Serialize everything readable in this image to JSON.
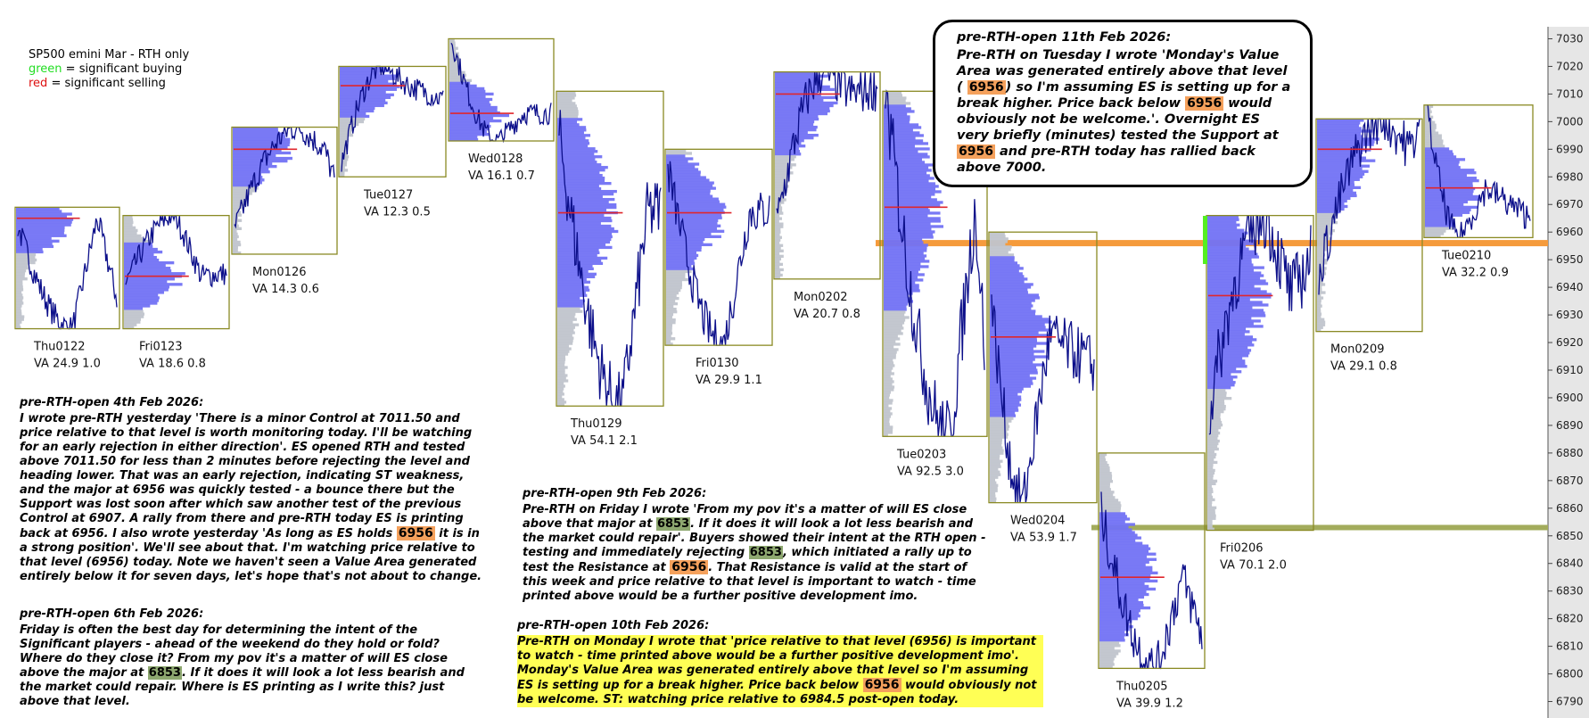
{
  "legend": {
    "line1": "SP500 emini  Mar - RTH only",
    "green_word": "green",
    "green_rest": " = significant buying",
    "red_word": "red",
    "red_rest": " = significant selling",
    "green_color": "#22dd22",
    "red_color": "#dd1111"
  },
  "chart_data": {
    "type": "line",
    "yaxis": {
      "range": [
        6785,
        7035
      ],
      "ticks": [
        6790,
        6800,
        6810,
        6820,
        6830,
        6840,
        6850,
        6860,
        6870,
        6880,
        6890,
        6900,
        6910,
        6920,
        6930,
        6940,
        6950,
        6960,
        6970,
        6980,
        6990,
        7000,
        7010,
        7020,
        7030
      ]
    },
    "levels": [
      {
        "price": 6956,
        "color": "#f59b3c"
      },
      {
        "price": 6853,
        "color": "#a3ac5c"
      }
    ],
    "sessions": [
      {
        "name": "Thu0122",
        "va_text": "VA 24.9  1.0",
        "high": 6969,
        "low": 6925,
        "poc": 6965,
        "open": 6962,
        "close": 6936
      },
      {
        "name": "Fri0123",
        "va_text": "VA 18.6  0.8",
        "high": 6966,
        "low": 6925,
        "poc": 6944,
        "open": 6941,
        "close": 6945
      },
      {
        "name": "Mon0126",
        "va_text": "VA 14.3  0.6",
        "high": 6998,
        "low": 6952,
        "poc": 6990,
        "open": 6961,
        "close": 6979
      },
      {
        "name": "Tue0127",
        "va_text": "VA 12.3  0.5",
        "high": 7020,
        "low": 6980,
        "poc": 7013,
        "open": 6985,
        "close": 7008
      },
      {
        "name": "Wed0128",
        "va_text": "VA 16.1  0.7",
        "high": 7030,
        "low": 6993,
        "poc": 7003,
        "open": 7030,
        "close": 7003
      },
      {
        "name": "Thu0129",
        "va_text": "VA 54.1  2.1",
        "high": 7011,
        "low": 6897,
        "poc": 6967,
        "open": 6995,
        "close": 6968
      },
      {
        "name": "Fri0130",
        "va_text": "VA 29.9  1.1",
        "high": 6990,
        "low": 6919,
        "poc": 6967,
        "open": 6983,
        "close": 6968
      },
      {
        "name": "Mon0202",
        "va_text": "VA 20.7  0.8",
        "high": 7018,
        "low": 6943,
        "poc": 7010,
        "open": 6963,
        "close": 7012
      },
      {
        "name": "Tue0203",
        "va_text": "VA 92.5  3.0",
        "high": 7011,
        "low": 6886,
        "poc": 6969,
        "open": 7011,
        "close": 6920
      },
      {
        "name": "Wed0204",
        "va_text": "VA 53.9  1.7",
        "high": 6960,
        "low": 6862,
        "poc": 6922,
        "open": 6935,
        "close": 6912
      },
      {
        "name": "Thu0205",
        "va_text": "VA 39.9  1.2",
        "high": 6880,
        "low": 6802,
        "poc": 6835,
        "open": 6858,
        "close": 6814
      },
      {
        "name": "Fri0206",
        "va_text": "VA 70.1  2.0",
        "high": 6966,
        "low": 6852,
        "poc": 6937,
        "open": 6895,
        "close": 6951
      },
      {
        "name": "Mon0209",
        "va_text": "VA 29.1  0.8",
        "high": 7001,
        "low": 6924,
        "poc": 6990,
        "open": 6945,
        "close": 6999
      },
      {
        "name": "Tue0210",
        "va_text": "VA 32.2  0.9",
        "high": 7006,
        "low": 6958,
        "poc": 6976,
        "open": 7004,
        "close": 6965
      }
    ]
  },
  "notes": {
    "n11": {
      "title": "pre-RTH-open 11th Feb 2026:",
      "parts": [
        {
          "t": "Pre-RTH on Tuesday I wrote '"
        },
        {
          "t": "Monday's Value Area was generated entirely above that level ( ",
          "i": true
        },
        {
          "t": "6956",
          "h": true
        },
        {
          "t": ") so I'm assuming ES is setting up for a break higher. Price back below ",
          "i": true
        },
        {
          "t": "6956",
          "h": true
        },
        {
          "t": " would obviously not be welcome.",
          "i": true
        },
        {
          "t": "'. Overnight ES very briefly (minutes) tested the Support at "
        },
        {
          "t": "6956",
          "h": true
        },
        {
          "t": " and pre-RTH today has rallied back above 7000."
        }
      ]
    },
    "n4": {
      "title": "pre-RTH-open 4th Feb 2026:",
      "parts": [
        {
          "t": "I wrote pre-RTH yesterday 'There is a minor Control at 7011.50 and price relative to that level is worth monitoring today. I'll be watching for an early rejection in either direction'. ES opened RTH and tested above 7011.50 for less than 2 minutes before rejecting the level and heading lower. That was an early rejection, indicating ST weakness, and the major at 6956 was quickly tested - a bounce there but the Support was lost soon after which saw another test of the previous Control at 6907. A rally from there and pre-RTH today ES is printing back at 6956. I also wrote yesterday 'As long as ES holds "
        },
        {
          "t": "6956",
          "h": true
        },
        {
          "t": " it is in a strong position'. We'll see about that. I'm watching price relative to that level (6956) today. Note we haven't seen a Value Area generated entirely below it for seven days, let's hope that's not about to change."
        }
      ]
    },
    "n6": {
      "title": "pre-RTH-open 6th Feb 2026:",
      "parts": [
        {
          "t": "Friday is often the best day for determining the intent of the Significant players - ahead of the weekend do they hold or fold? Where do they close it? From my pov it's a matter of will ES close above the major at "
        },
        {
          "t": "6853",
          "g": true
        },
        {
          "t": ". If it does it will look a lot less bearish and the market could repair. Where is ES printing as I write this? just above that level."
        }
      ]
    },
    "n9": {
      "title": "pre-RTH-open 9th Feb 2026:",
      "parts": [
        {
          "t": "Pre-RTH on Friday I wrote 'From my pov it's a matter of will ES close above that major at "
        },
        {
          "t": "6853",
          "g": true
        },
        {
          "t": ". If it does it will look a lot less bearish and the market could repair'. Buyers showed their intent at the RTH open - testing and immediately rejecting "
        },
        {
          "t": "6853",
          "g": true
        },
        {
          "t": ", which initiated a rally up to test the Resistance at "
        },
        {
          "t": "6956",
          "h": true
        },
        {
          "t": ". That Resistance is valid at the start of this week and price relative to that level is important to watch - time printed above would be a further positive development imo."
        }
      ]
    },
    "n10": {
      "title": "pre-RTH-open 10th Feb 2026:",
      "parts": [
        {
          "t": "Pre-RTH on Monday I wrote that 'price relative to that level (6956) is important to watch - time printed above would be a further positive development imo'. Monday's Value Area was generated entirely above that level so I'm assuming ES is setting up for a break higher. Price back below "
        },
        {
          "t": "6956",
          "h": true
        },
        {
          "t": " would obviously not be welcome. ST: watching price relative to 6984.5 post-open today."
        }
      ]
    }
  }
}
